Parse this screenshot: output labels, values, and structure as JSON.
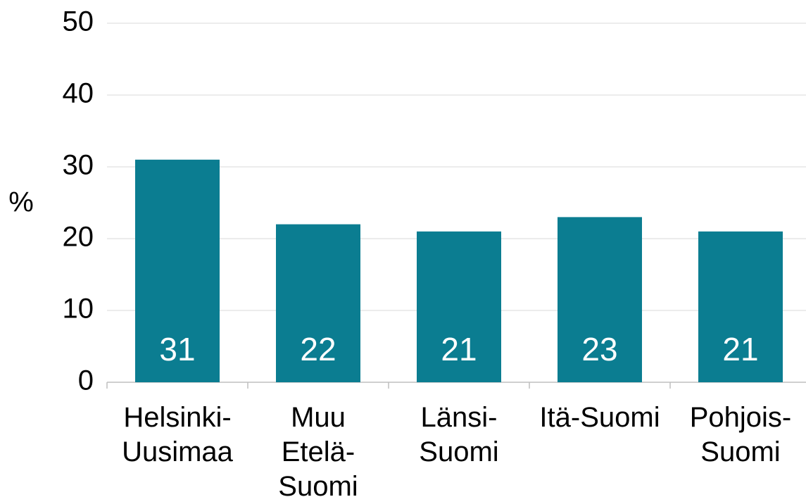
{
  "chart_data": {
    "type": "bar",
    "y_label": "%",
    "categories": [
      "Helsinki-Uusimaa",
      "Muu Etelä-Suomi",
      "Länsi-Suomi",
      "Itä-Suomi",
      "Pohjois-Suomi"
    ],
    "values": [
      31,
      22,
      21,
      23,
      21
    ],
    "color": "#0b7d91",
    "ylim": [
      0,
      50
    ],
    "yticks": [
      0,
      10,
      20,
      30,
      40,
      50
    ],
    "grid": true
  }
}
